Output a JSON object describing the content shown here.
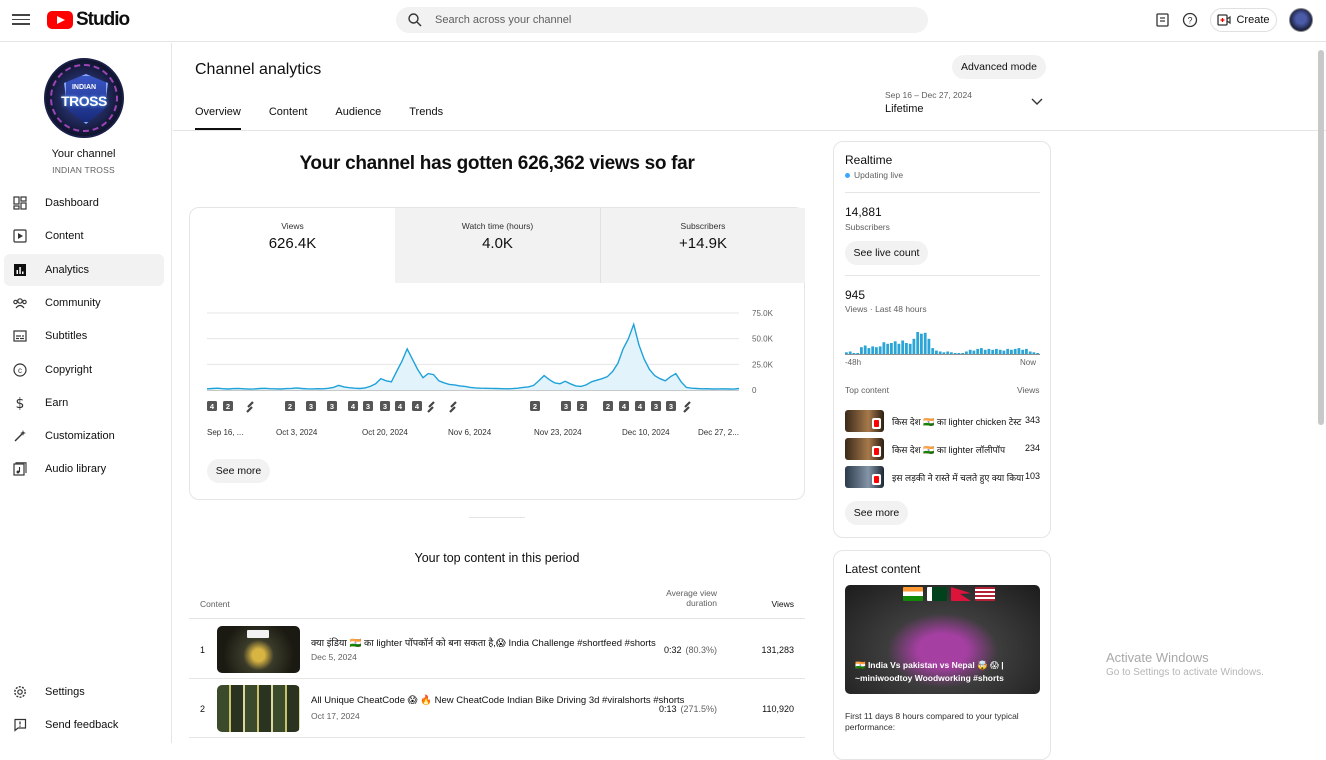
{
  "header": {
    "logo_text": "Studio",
    "search_placeholder": "Search across your channel",
    "create_label": "Create"
  },
  "sidebar": {
    "avatar_text_top": "INDIAN",
    "avatar_text_main": "TROSS",
    "your_channel": "Your channel",
    "channel_name": "INDIAN TROSS",
    "items": [
      {
        "label": "Dashboard",
        "icon": "dashboard-icon"
      },
      {
        "label": "Content",
        "icon": "content-icon"
      },
      {
        "label": "Analytics",
        "icon": "analytics-icon",
        "active": true
      },
      {
        "label": "Community",
        "icon": "community-icon"
      },
      {
        "label": "Subtitles",
        "icon": "subtitles-icon"
      },
      {
        "label": "Copyright",
        "icon": "copyright-icon"
      },
      {
        "label": "Earn",
        "icon": "earn-icon"
      },
      {
        "label": "Customization",
        "icon": "customization-icon"
      },
      {
        "label": "Audio library",
        "icon": "audio-library-icon"
      }
    ],
    "bottom": [
      {
        "label": "Settings",
        "icon": "settings-icon"
      },
      {
        "label": "Send feedback",
        "icon": "feedback-icon"
      }
    ]
  },
  "main": {
    "title": "Channel analytics",
    "advanced_mode": "Advanced mode",
    "tabs": [
      "Overview",
      "Content",
      "Audience",
      "Trends"
    ],
    "date_range": "Sep 16 – Dec 27, 2024",
    "period": "Lifetime",
    "headline": "Your channel has gotten 626,362 views so far",
    "metrics": [
      {
        "label": "Views",
        "value": "626.4K"
      },
      {
        "label": "Watch time (hours)",
        "value": "4.0K"
      },
      {
        "label": "Subscribers",
        "value": "+14.9K"
      }
    ],
    "see_more": "See more",
    "top_content_title": "Your top content in this period",
    "table": {
      "col_content": "Content",
      "col_avd": "Average view duration",
      "col_views": "Views",
      "rows": [
        {
          "rank": "1",
          "title": "क्या इंडिया 🇮🇳 का lighter पॉपकॉर्न को बना सकता है,😱 India Challenge #shortfeed #shorts",
          "date": "Dec 5, 2024",
          "duration": "0:32",
          "pct": "(80.3%)",
          "views": "131,283"
        },
        {
          "rank": "2",
          "title": "All Unique CheatCode 😱 🔥 New CheatCode Indian Bike Driving 3d #viralshorts #shorts",
          "date": "Oct 17, 2024",
          "duration": "0:13",
          "pct": "(271.5%)",
          "views": "110,920"
        }
      ]
    }
  },
  "chart_data": {
    "type": "line",
    "title": "",
    "xlabel": "",
    "ylabel": "",
    "x_tick_labels": [
      "Sep 16, ...",
      "Oct 3, 2024",
      "Oct 20, 2024",
      "Nov 6, 2024",
      "Nov 23, 2024",
      "Dec 10, 2024",
      "Dec 27, 2..."
    ],
    "y_tick_labels": [
      "75.0K",
      "50.0K",
      "25.0K",
      "0"
    ],
    "ylim": [
      0,
      75000
    ],
    "y_ticks": [
      0,
      25000,
      50000,
      75000
    ],
    "x_start": "2024-09-16",
    "x_end": "2024-12-27",
    "series": [
      {
        "values": [
          1200,
          1500,
          1800,
          1300,
          1000,
          1400,
          1600,
          1200,
          900,
          1100,
          1500,
          1700,
          1300,
          1200,
          1000,
          1400,
          1600,
          2000,
          1500,
          1200,
          1100,
          1300,
          1200,
          1700,
          2500,
          4500,
          3000,
          2200,
          1800,
          1500,
          2000,
          3500,
          6000,
          11000,
          9000,
          8000,
          18000,
          28000,
          40000,
          30000,
          20000,
          12000,
          16000,
          15000,
          9000,
          7000,
          5500,
          5000,
          4000,
          3500,
          2500,
          2000,
          1800,
          1700,
          1600,
          1500,
          1300,
          1200,
          1400,
          1800,
          2500,
          3000,
          4500,
          9000,
          14000,
          10000,
          7000,
          6000,
          8500,
          6000,
          4000,
          3500,
          5000,
          8000,
          9500,
          11000,
          13000,
          18000,
          26000,
          40000,
          50000,
          64000,
          44000,
          30000,
          20000,
          14000,
          11000,
          9000,
          13000,
          16000,
          8000,
          2500,
          1800,
          1500,
          1200,
          1300,
          1000,
          1100,
          1200,
          1000,
          900,
          1500
        ],
        "color": "#1fa2d8"
      }
    ],
    "upload_markers": [
      "4",
      "2",
      "short",
      "2",
      "3",
      "3",
      "4",
      "3",
      "3",
      "4",
      "4",
      "short",
      "short",
      "2",
      "3",
      "2",
      "2",
      "4",
      "4",
      "3",
      "3",
      "short"
    ],
    "grid": true
  },
  "realtime": {
    "title": "Realtime",
    "live_text": "Updating live",
    "subs_value": "14,881",
    "subs_label": "Subscribers",
    "see_live": "See live count",
    "views_value": "945",
    "views_label": "Views · Last 48 hours",
    "spark_left": "-48h",
    "spark_right": "Now",
    "spark_values": [
      2,
      3,
      1,
      0,
      8,
      10,
      7,
      9,
      8,
      9,
      14,
      12,
      13,
      15,
      12,
      16,
      13,
      12,
      18,
      26,
      24,
      25,
      18,
      7,
      4,
      3,
      2,
      3,
      2,
      1,
      0,
      0,
      3,
      5,
      4,
      6,
      7,
      5,
      6,
      5,
      6,
      5,
      4,
      6,
      5,
      6,
      7,
      5,
      6,
      3,
      2,
      1
    ],
    "top_content_label": "Top content",
    "views_col": "Views",
    "top_items": [
      {
        "title": "किस देश 🇮🇳 का lighter chicken टेस्ट",
        "views": "343"
      },
      {
        "title": "किस देश 🇮🇳 का lighter लॉलीपॉप",
        "views": "234"
      },
      {
        "title": "इस लड़की ने रास्ते में चलते हुए क्या किया",
        "views": "103"
      }
    ],
    "see_more": "See more"
  },
  "latest": {
    "title": "Latest content",
    "caption": "🇮🇳 India Vs pakistan vs Nepal 🤯 😱 | ~miniwoodtoy Woodworking #shorts",
    "footer": "First 11 days 8 hours compared to your typical performance:"
  },
  "watermark": {
    "line1": "Activate Windows",
    "line2": "Go to Settings to activate Windows."
  }
}
